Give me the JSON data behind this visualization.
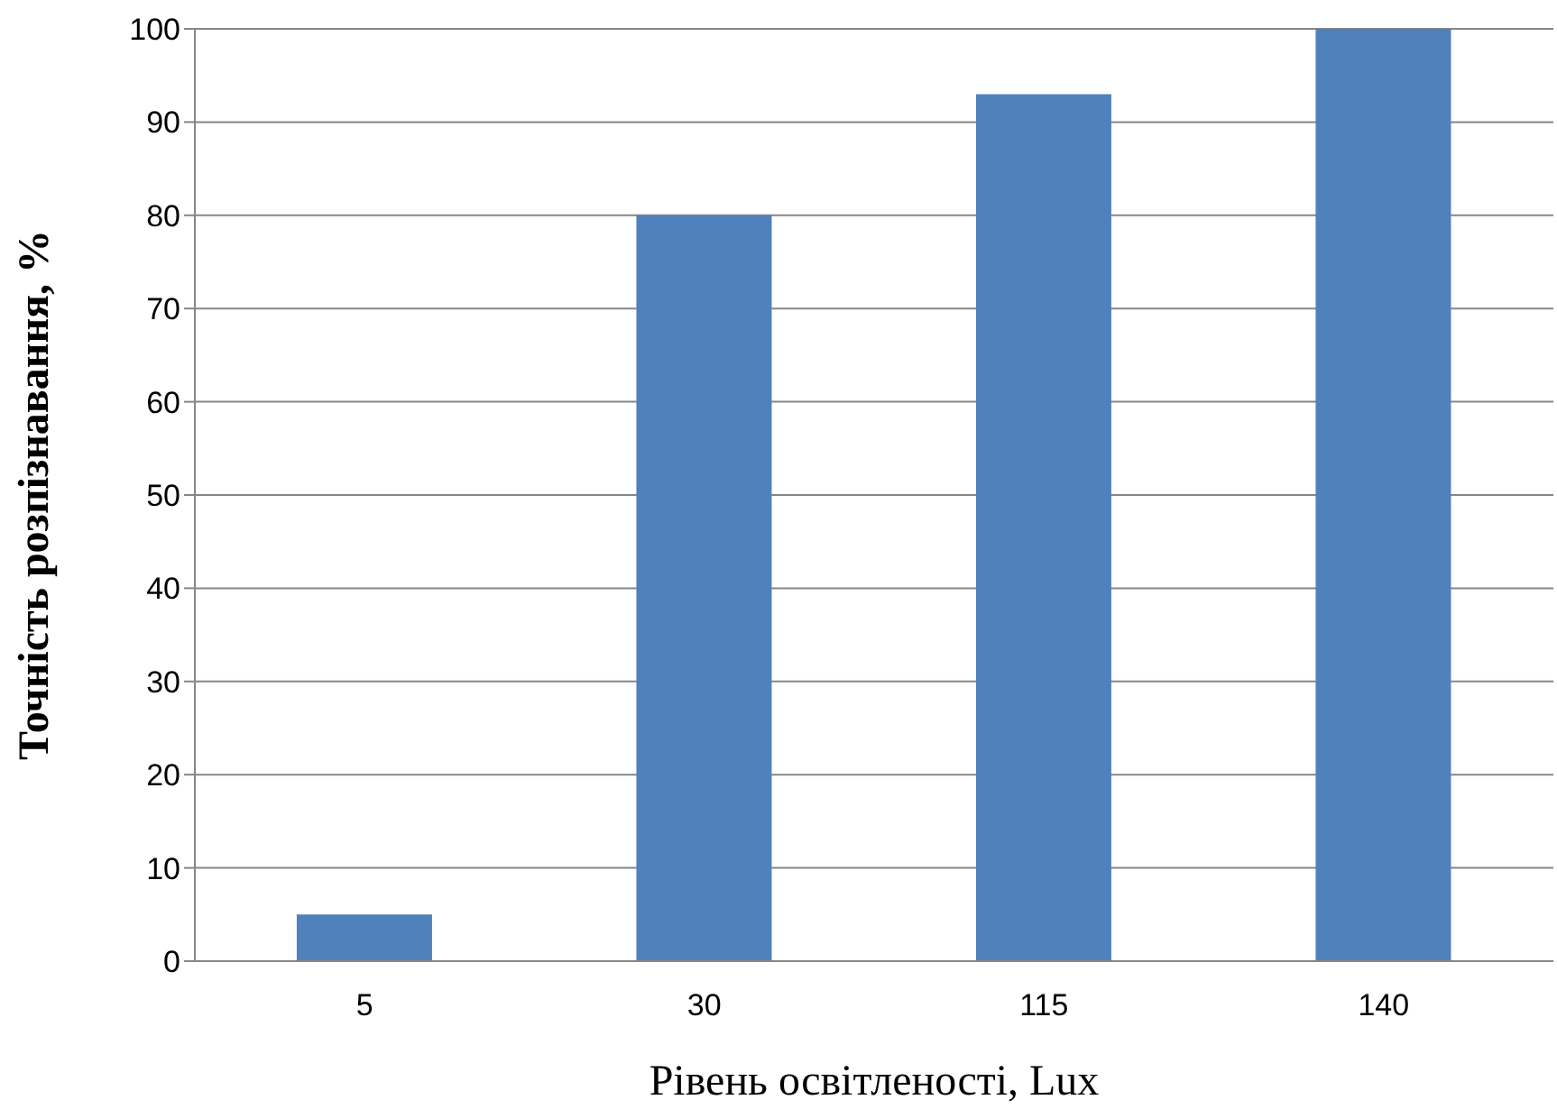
{
  "chart_data": {
    "type": "bar",
    "xlabel": "Рівень освітленості, Lux",
    "ylabel": "Точність розпізнавання, %",
    "categories": [
      "5",
      "30",
      "115",
      "140"
    ],
    "values": [
      5,
      80,
      93,
      100
    ],
    "color": "#4f81bd",
    "ylim": [
      0,
      100
    ],
    "yticks": [
      0,
      10,
      20,
      30,
      40,
      50,
      60,
      70,
      80,
      90,
      100
    ],
    "grid": "y",
    "legend": false
  }
}
